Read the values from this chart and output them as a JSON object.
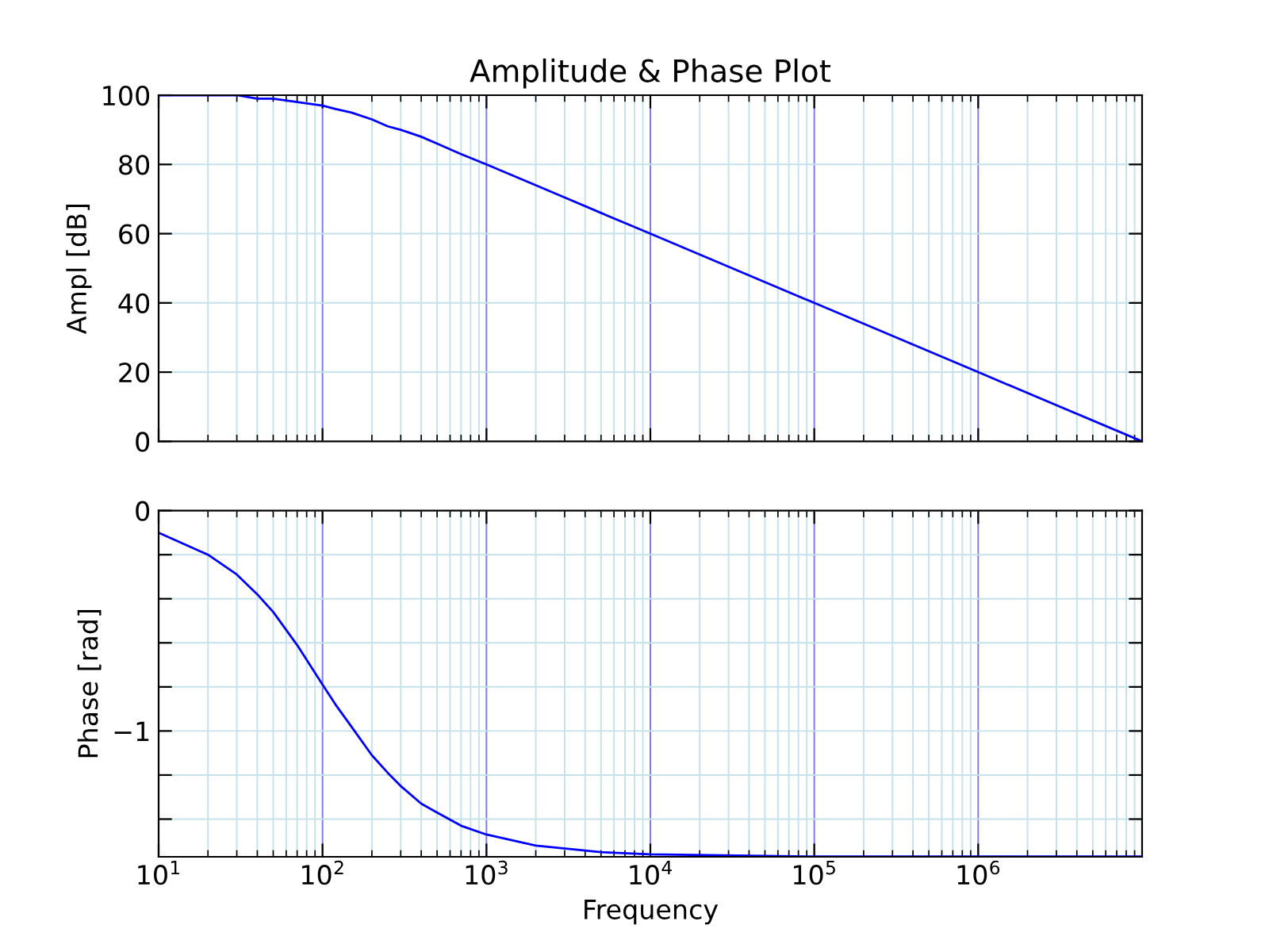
{
  "chart_data": [
    {
      "type": "line",
      "title": "Amplitude & Phase Plot",
      "ylabel": "Ampl [dB]",
      "log": "x",
      "grid": true,
      "tick_labels": "y",
      "x": [
        10,
        20,
        30,
        40,
        50,
        70,
        100,
        120,
        150,
        200,
        250,
        300,
        400,
        500,
        700,
        1000,
        2000,
        5000,
        10000,
        100000,
        1000000,
        10000000
      ],
      "series": [
        {
          "color": "#0000ff",
          "values": [
            100,
            100,
            100,
            99,
            99,
            98,
            97,
            96,
            95,
            93,
            91,
            90,
            88,
            86,
            83,
            80,
            74,
            66,
            60,
            40,
            20,
            0
          ]
        }
      ],
      "xlim": [
        10,
        10000000
      ],
      "xticks": [
        {
          "value": 10,
          "label": null
        },
        {
          "value": 100,
          "label": null
        },
        {
          "value": 1000,
          "label": null
        },
        {
          "value": 10000,
          "label": null
        },
        {
          "value": 100000,
          "label": null
        },
        {
          "value": 1000000,
          "label": null
        }
      ],
      "ylim": [
        0,
        100
      ],
      "yticks": [
        0,
        20,
        40,
        60,
        80,
        100
      ]
    },
    {
      "type": "line",
      "xlabel": "Frequency",
      "ylabel": "Phase [rad]",
      "log": "x",
      "grid": true,
      "x": [
        10,
        20,
        30,
        40,
        50,
        70,
        100,
        120,
        150,
        200,
        250,
        300,
        400,
        500,
        700,
        1000,
        2000,
        5000,
        10000,
        100000,
        1000000,
        10000000
      ],
      "series": [
        {
          "color": "#0000ff",
          "values": [
            -0.1,
            -0.2,
            -0.29,
            -0.38,
            -0.46,
            -0.61,
            -0.79,
            -0.88,
            -0.98,
            -1.11,
            -1.19,
            -1.25,
            -1.33,
            -1.37,
            -1.43,
            -1.47,
            -1.52,
            -1.55,
            -1.56,
            -1.57,
            -1.57,
            -1.57
          ]
        }
      ],
      "xlim": [
        10,
        10000000
      ],
      "xticks": [
        {
          "value": 10,
          "label": "10$^{1}$"
        },
        {
          "value": 100,
          "label": "10$^{2}$"
        },
        {
          "value": 1000,
          "label": "10$^{3}$"
        },
        {
          "value": 10000,
          "label": "10$^{4}$"
        },
        {
          "value": 100000,
          "label": "10$^{5}$"
        },
        {
          "value": 1000000,
          "label": "10$^{6}$"
        }
      ],
      "ylim": [
        -1.571,
        0
      ],
      "yticks": [
        {
          "value": -1.4,
          "label": null
        },
        {
          "value": -1.2,
          "label": null
        },
        {
          "value": -1,
          "label": "−1"
        },
        {
          "value": -0.8,
          "label": null
        },
        {
          "value": -0.6,
          "label": null
        },
        {
          "value": -0.4,
          "label": null
        },
        {
          "value": -0.2,
          "label": null
        },
        0
      ]
    }
  ]
}
